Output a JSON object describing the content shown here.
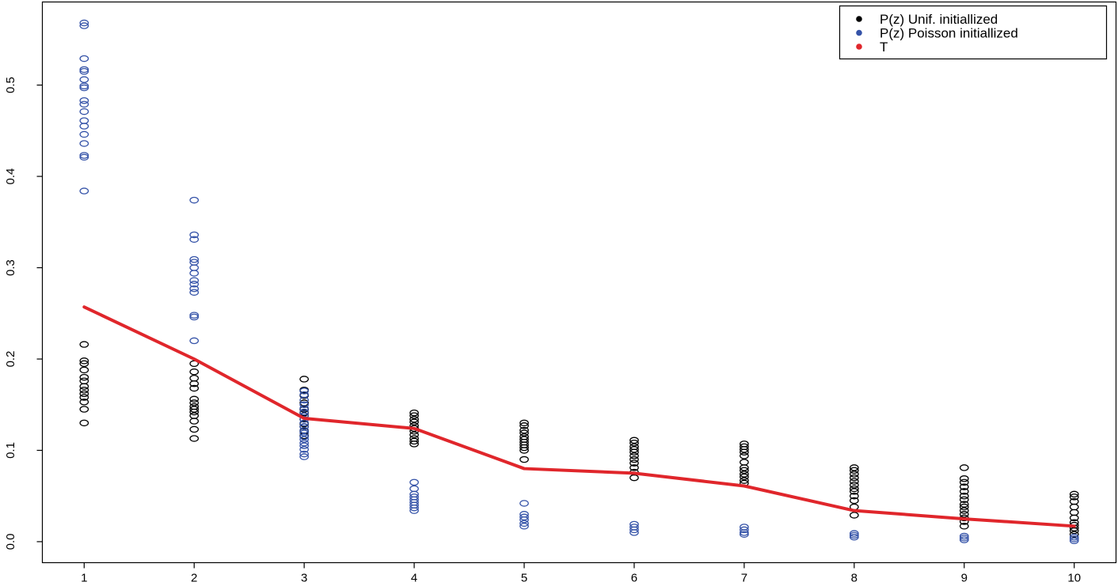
{
  "chart_data": {
    "type": "scatter",
    "title": "",
    "xlabel": "",
    "ylabel": "",
    "xlim": [
      0.62,
      10.38
    ],
    "ylim": [
      -0.023,
      0.591
    ],
    "x_ticks": [
      "1",
      "2",
      "3",
      "4",
      "5",
      "6",
      "7",
      "8",
      "9",
      "10"
    ],
    "y_ticks": [
      "0.0",
      "0.1",
      "0.2",
      "0.3",
      "0.4",
      "0.5"
    ],
    "grid": false,
    "legend_position": "top-right",
    "series": [
      {
        "name": "P(z) Unif. initiallized",
        "kind": "points",
        "marker": "open-circle",
        "color": "#000000",
        "points": [
          {
            "x": 1,
            "y": [
              0.13,
              0.145,
              0.153,
              0.158,
              0.162,
              0.166,
              0.17,
              0.176,
              0.18,
              0.188,
              0.195,
              0.198,
              0.216
            ]
          },
          {
            "x": 2,
            "y": [
              0.113,
              0.123,
              0.132,
              0.138,
              0.142,
              0.145,
              0.148,
              0.152,
              0.156,
              0.168,
              0.173,
              0.179,
              0.186,
              0.195
            ]
          },
          {
            "x": 3,
            "y": [
              0.116,
              0.121,
              0.126,
              0.129,
              0.134,
              0.138,
              0.141,
              0.145,
              0.152,
              0.16,
              0.166,
              0.178
            ]
          },
          {
            "x": 4,
            "y": [
              0.107,
              0.11,
              0.113,
              0.117,
              0.121,
              0.124,
              0.127,
              0.131,
              0.134,
              0.138,
              0.141
            ]
          },
          {
            "x": 5,
            "y": [
              0.09,
              0.1,
              0.103,
              0.106,
              0.109,
              0.112,
              0.115,
              0.119,
              0.122,
              0.127,
              0.13
            ]
          },
          {
            "x": 6,
            "y": [
              0.07,
              0.076,
              0.081,
              0.086,
              0.09,
              0.094,
              0.098,
              0.101,
              0.104,
              0.108,
              0.111
            ]
          },
          {
            "x": 7,
            "y": [
              0.064,
              0.067,
              0.071,
              0.074,
              0.078,
              0.081,
              0.087,
              0.094,
              0.098,
              0.101,
              0.104,
              0.107
            ]
          },
          {
            "x": 8,
            "y": [
              0.029,
              0.038,
              0.045,
              0.05,
              0.055,
              0.058,
              0.062,
              0.066,
              0.07,
              0.074,
              0.078,
              0.081
            ]
          },
          {
            "x": 9,
            "y": [
              0.017,
              0.022,
              0.026,
              0.03,
              0.034,
              0.038,
              0.041,
              0.046,
              0.05,
              0.055,
              0.06,
              0.065,
              0.069,
              0.081
            ]
          },
          {
            "x": 10,
            "y": [
              0.008,
              0.012,
              0.015,
              0.018,
              0.021,
              0.026,
              0.032,
              0.038,
              0.044,
              0.049,
              0.052
            ]
          }
        ]
      },
      {
        "name": "P(z) Poisson initiallized",
        "kind": "points",
        "marker": "open-circle",
        "color": "#3553a8",
        "points": [
          {
            "x": 1,
            "y": [
              0.384,
              0.421,
              0.423,
              0.436,
              0.446,
              0.455,
              0.461,
              0.471,
              0.479,
              0.483,
              0.497,
              0.499,
              0.506,
              0.515,
              0.517,
              0.529,
              0.565,
              0.568
            ]
          },
          {
            "x": 2,
            "y": [
              0.22,
              0.246,
              0.248,
              0.273,
              0.277,
              0.282,
              0.286,
              0.294,
              0.3,
              0.306,
              0.309,
              0.331,
              0.336,
              0.374
            ]
          },
          {
            "x": 3,
            "y": [
              0.093,
              0.096,
              0.101,
              0.105,
              0.108,
              0.112,
              0.115,
              0.119,
              0.122,
              0.126,
              0.13,
              0.134,
              0.138,
              0.142,
              0.146,
              0.15,
              0.155,
              0.161,
              0.165
            ]
          },
          {
            "x": 4,
            "y": [
              0.034,
              0.037,
              0.04,
              0.043,
              0.046,
              0.049,
              0.052,
              0.058,
              0.065
            ]
          },
          {
            "x": 5,
            "y": [
              0.017,
              0.02,
              0.024,
              0.027,
              0.03,
              0.042
            ]
          },
          {
            "x": 6,
            "y": [
              0.01,
              0.013,
              0.016,
              0.019
            ]
          },
          {
            "x": 7,
            "y": [
              0.008,
              0.01,
              0.013,
              0.016
            ]
          },
          {
            "x": 8,
            "y": [
              0.005,
              0.007,
              0.009
            ]
          },
          {
            "x": 9,
            "y": [
              0.002,
              0.004,
              0.006
            ]
          },
          {
            "x": 10,
            "y": [
              0.001,
              0.003,
              0.005
            ]
          }
        ]
      },
      {
        "name": "T",
        "kind": "line",
        "color": "#e0262b",
        "x": [
          1,
          2,
          3,
          4,
          5,
          6,
          7,
          8,
          9,
          10
        ],
        "values": [
          0.257,
          0.2,
          0.135,
          0.124,
          0.08,
          0.075,
          0.061,
          0.034,
          0.025,
          0.017
        ]
      }
    ]
  }
}
